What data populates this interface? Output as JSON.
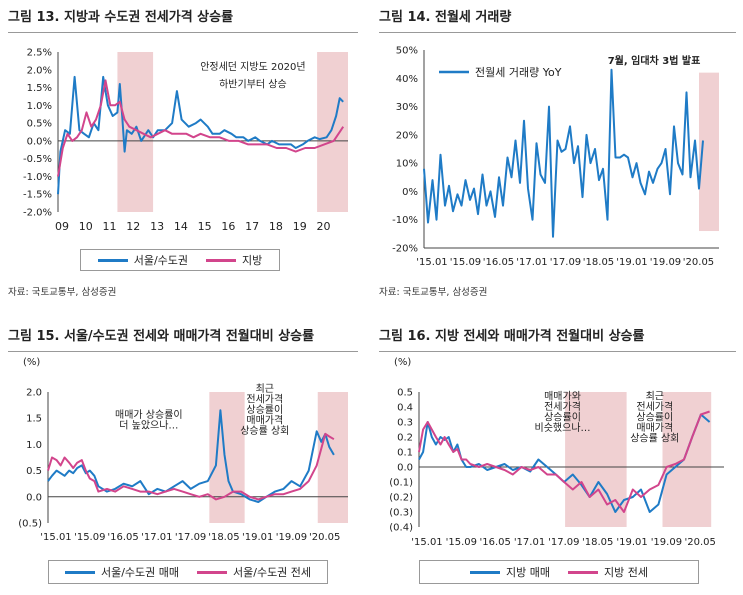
{
  "panels": [
    {
      "title": "그림 13. 지방과 수도권 전세가격 상승률",
      "source": "자료: 국토교통부, 삼성증권",
      "legend": [
        "서울/수도권",
        "지방"
      ]
    },
    {
      "title": "그림 14. 전월세 거래량",
      "source": "자료: 국토교통부, 삼성증권",
      "legend": [
        "전월세 거래량 YoY"
      ]
    },
    {
      "title": "그림 15. 서울/수도권 전세와 매매가격 전월대비 상승률",
      "source": "",
      "legend": [
        "서울/수도권 매매",
        "서울/수도권 전세"
      ]
    },
    {
      "title": "그림 16. 지방 전세와 매매가격 전월대비 상승률",
      "source": "",
      "legend": [
        "지방 매매",
        "지방 전세"
      ]
    }
  ],
  "colors": {
    "blue": "#1f7bc6",
    "pink": "#d2458c",
    "shade": "#f0d0d2"
  },
  "chart_data": [
    {
      "type": "line",
      "ylim": [
        -2.0,
        2.5
      ],
      "yticks": [
        "2.5%",
        "2.0%",
        "1.5%",
        "1.0%",
        "0.5%",
        "0.0%",
        "-0.5%",
        "-1.0%",
        "-1.5%",
        "-2.0%"
      ],
      "xlim": [
        2009.0,
        2021.2
      ],
      "xticks": [
        "09",
        "10",
        "11",
        "12",
        "13",
        "14",
        "15",
        "16",
        "17",
        "18",
        "19",
        "20"
      ],
      "shaded": [
        [
          2011.5,
          2013.0
        ],
        [
          2019.9,
          2021.2
        ]
      ],
      "annotations": [
        {
          "text": "안정세던 지방도 2020년",
          "x": 2017.2,
          "y": 2.0
        },
        {
          "text": "하반기부터 상승",
          "x": 2017.2,
          "y": 1.5
        }
      ],
      "series": [
        {
          "name": "서울/수도권",
          "x": [
            2009.0,
            2009.1,
            2009.3,
            2009.5,
            2009.7,
            2009.9,
            2010.1,
            2010.3,
            2010.5,
            2010.7,
            2010.9,
            2011.0,
            2011.1,
            2011.3,
            2011.5,
            2011.6,
            2011.7,
            2011.8,
            2011.9,
            2012.1,
            2012.3,
            2012.5,
            2012.8,
            2013.0,
            2013.2,
            2013.5,
            2013.8,
            2014.0,
            2014.2,
            2014.5,
            2014.8,
            2015.0,
            2015.3,
            2015.5,
            2015.8,
            2016.0,
            2016.3,
            2016.5,
            2016.8,
            2017.0,
            2017.3,
            2017.5,
            2017.8,
            2018.0,
            2018.3,
            2018.5,
            2018.8,
            2019.0,
            2019.3,
            2019.5,
            2019.8,
            2020.0,
            2020.3,
            2020.5,
            2020.7,
            2020.85,
            2021.0
          ],
          "values": [
            -1.5,
            -0.3,
            0.3,
            0.2,
            1.8,
            0.3,
            0.2,
            0.1,
            0.5,
            0.3,
            1.8,
            1.4,
            1.0,
            0.7,
            0.8,
            1.6,
            0.7,
            -0.3,
            0.3,
            0.2,
            0.4,
            0.0,
            0.3,
            0.1,
            0.3,
            0.3,
            0.5,
            1.4,
            0.6,
            0.4,
            0.5,
            0.6,
            0.4,
            0.2,
            0.2,
            0.3,
            0.2,
            0.1,
            0.1,
            0.0,
            0.1,
            0.0,
            -0.1,
            0.0,
            -0.1,
            -0.1,
            -0.1,
            -0.2,
            -0.1,
            0.0,
            0.1,
            0.05,
            0.1,
            0.3,
            0.7,
            1.2,
            1.1
          ]
        },
        {
          "name": "지방",
          "x": [
            2009.0,
            2009.2,
            2009.4,
            2009.6,
            2009.8,
            2010.0,
            2010.2,
            2010.4,
            2010.6,
            2010.8,
            2011.0,
            2011.2,
            2011.4,
            2011.6,
            2011.8,
            2012.0,
            2012.3,
            2012.6,
            2012.9,
            2013.2,
            2013.5,
            2013.8,
            2014.1,
            2014.4,
            2014.7,
            2015.0,
            2015.4,
            2015.8,
            2016.2,
            2016.6,
            2017.0,
            2017.4,
            2017.8,
            2018.2,
            2018.6,
            2019.0,
            2019.4,
            2019.8,
            2020.2,
            2020.6,
            2020.9,
            2021.0
          ],
          "values": [
            -1.0,
            -0.2,
            0.2,
            0.0,
            0.1,
            0.3,
            0.8,
            0.4,
            0.6,
            1.0,
            1.7,
            1.0,
            1.0,
            1.1,
            0.6,
            0.4,
            0.3,
            0.2,
            0.1,
            0.2,
            0.3,
            0.2,
            0.2,
            0.2,
            0.1,
            0.2,
            0.1,
            0.1,
            0.0,
            0.0,
            -0.1,
            -0.1,
            -0.1,
            -0.2,
            -0.2,
            -0.3,
            -0.2,
            -0.2,
            -0.1,
            0.0,
            0.3,
            0.4
          ]
        }
      ]
    },
    {
      "type": "line",
      "ylim": [
        -20,
        50
      ],
      "yticks": [
        "50%",
        "40%",
        "30%",
        "20%",
        "10%",
        "0%",
        "-10%",
        "-20%"
      ],
      "xticks": [
        "'15.01",
        "'15.09",
        "'16.05",
        "'17.01",
        "'17.09",
        "'18.05",
        "'19.01",
        "'19.09",
        "'20.05"
      ],
      "shaded": [
        [
          2020.5,
          2020.9
        ]
      ],
      "annotations": [
        {
          "text": "7월, 임대차 3법 발표",
          "x": 2019.6,
          "y": 45
        }
      ],
      "series": [
        {
          "name": "전월세 거래량 YoY",
          "x": [
            2015.0,
            2015.08,
            2015.17,
            2015.25,
            2015.33,
            2015.42,
            2015.5,
            2015.58,
            2015.67,
            2015.75,
            2015.83,
            2015.92,
            2016.0,
            2016.08,
            2016.17,
            2016.25,
            2016.33,
            2016.42,
            2016.5,
            2016.58,
            2016.67,
            2016.75,
            2016.83,
            2016.92,
            2017.0,
            2017.08,
            2017.17,
            2017.25,
            2017.33,
            2017.42,
            2017.5,
            2017.58,
            2017.67,
            2017.75,
            2017.83,
            2017.92,
            2018.0,
            2018.08,
            2018.17,
            2018.25,
            2018.33,
            2018.42,
            2018.5,
            2018.58,
            2018.67,
            2018.75,
            2018.83,
            2018.92,
            2019.0,
            2019.08,
            2019.17,
            2019.25,
            2019.33,
            2019.42,
            2019.5,
            2019.58,
            2019.67,
            2019.75,
            2019.83,
            2019.92,
            2020.0,
            2020.08,
            2020.17,
            2020.25,
            2020.33,
            2020.42,
            2020.5,
            2020.58
          ],
          "values": [
            8,
            -11,
            4,
            -10,
            13,
            -5,
            2,
            -7,
            -1,
            -5,
            4,
            -3,
            1,
            -8,
            6,
            -5,
            0,
            -9,
            5,
            -5,
            12,
            5,
            18,
            3,
            25,
            1,
            -10,
            17,
            6,
            3,
            30,
            -16,
            18,
            14,
            15,
            23,
            10,
            16,
            -2,
            20,
            10,
            15,
            4,
            8,
            -10,
            43,
            12,
            12,
            13,
            12,
            5,
            10,
            3,
            -1,
            7,
            3,
            8,
            10,
            15,
            -1,
            23,
            10,
            6,
            35,
            5,
            18,
            1,
            18
          ]
        }
      ]
    },
    {
      "type": "line",
      "ylim": [
        -0.5,
        2.0
      ],
      "yticks": [
        "2.0",
        "1.5",
        "1.0",
        "0.5",
        "0.0",
        "(0.5)"
      ],
      "xticks": [
        "'15.01",
        "'15.09",
        "'16.05",
        "'17.01",
        "'17.09",
        "'18.05",
        "'19.01",
        "'19.09",
        "'20.05"
      ],
      "shaded": [
        [
          2018.2,
          2018.9
        ],
        [
          2020.35,
          2020.95
        ]
      ],
      "annotations": [
        {
          "text": "매매가 상승률이",
          "x": 2017.0,
          "y": 1.5
        },
        {
          "text": "더 높았으나…",
          "x": 2017.0,
          "y": 1.3
        },
        {
          "text": "최근",
          "x": 2019.3,
          "y": 2.0
        },
        {
          "text": "전세가격",
          "x": 2019.3,
          "y": 1.8
        },
        {
          "text": "상승률이",
          "x": 2019.3,
          "y": 1.6
        },
        {
          "text": "매매가격",
          "x": 2019.3,
          "y": 1.4
        },
        {
          "text": "상승률 상회",
          "x": 2019.3,
          "y": 1.2
        }
      ],
      "series": [
        {
          "name": "서울/수도권 매매",
          "x": [
            2015.0,
            2015.08,
            2015.17,
            2015.25,
            2015.33,
            2015.42,
            2015.5,
            2015.58,
            2015.67,
            2015.75,
            2015.83,
            2015.92,
            2016.0,
            2016.17,
            2016.33,
            2016.5,
            2016.67,
            2016.83,
            2017.0,
            2017.17,
            2017.33,
            2017.5,
            2017.67,
            2017.83,
            2018.0,
            2018.17,
            2018.33,
            2018.42,
            2018.5,
            2018.58,
            2018.67,
            2018.83,
            2019.0,
            2019.17,
            2019.33,
            2019.5,
            2019.67,
            2019.83,
            2020.0,
            2020.17,
            2020.33,
            2020.42,
            2020.5,
            2020.58,
            2020.67
          ],
          "values": [
            0.3,
            0.4,
            0.5,
            0.45,
            0.4,
            0.5,
            0.45,
            0.55,
            0.6,
            0.45,
            0.5,
            0.4,
            0.2,
            0.1,
            0.15,
            0.25,
            0.2,
            0.3,
            0.05,
            0.15,
            0.1,
            0.2,
            0.3,
            0.15,
            0.25,
            0.3,
            0.6,
            1.65,
            0.8,
            0.3,
            0.1,
            0.05,
            -0.05,
            -0.1,
            0.0,
            0.1,
            0.15,
            0.3,
            0.2,
            0.5,
            1.25,
            1.05,
            1.2,
            0.95,
            0.8
          ]
        },
        {
          "name": "서울/수도권 전세",
          "x": [
            2015.0,
            2015.08,
            2015.17,
            2015.25,
            2015.33,
            2015.42,
            2015.5,
            2015.58,
            2015.67,
            2015.75,
            2015.83,
            2015.92,
            2016.0,
            2016.17,
            2016.33,
            2016.5,
            2016.67,
            2016.83,
            2017.0,
            2017.17,
            2017.33,
            2017.5,
            2017.67,
            2017.83,
            2018.0,
            2018.17,
            2018.33,
            2018.5,
            2018.67,
            2018.83,
            2019.0,
            2019.17,
            2019.33,
            2019.5,
            2019.67,
            2019.83,
            2020.0,
            2020.17,
            2020.33,
            2020.5,
            2020.58,
            2020.67
          ],
          "values": [
            0.5,
            0.75,
            0.7,
            0.6,
            0.75,
            0.65,
            0.55,
            0.65,
            0.7,
            0.5,
            0.35,
            0.3,
            0.1,
            0.15,
            0.1,
            0.2,
            0.15,
            0.1,
            0.1,
            0.05,
            0.1,
            0.15,
            0.1,
            0.05,
            0.0,
            0.05,
            -0.05,
            0.0,
            0.1,
            0.1,
            0.0,
            -0.05,
            0.0,
            0.05,
            0.05,
            0.1,
            0.15,
            0.3,
            0.6,
            1.2,
            1.15,
            1.1
          ]
        }
      ]
    },
    {
      "type": "line",
      "ylim": [
        -0.4,
        0.5
      ],
      "yticks": [
        "0.5",
        "0.4",
        "0.3",
        "0.2",
        "0.1",
        "0.0",
        "(0.1)",
        "(0.2)",
        "(0.3)",
        "(0.4)"
      ],
      "xticks": [
        "'15.01",
        "'15.09",
        "'16.05",
        "'17.01",
        "'17.09",
        "'18.05",
        "'19.01",
        "'19.09",
        "'20.05"
      ],
      "shaded": [
        [
          2017.85,
          2019.05
        ],
        [
          2019.75,
          2020.7
        ]
      ],
      "annotations": [
        {
          "text": "매매가와",
          "x": 2017.8,
          "y": 0.45
        },
        {
          "text": "전세가격",
          "x": 2017.8,
          "y": 0.38
        },
        {
          "text": "상승률이",
          "x": 2017.8,
          "y": 0.31
        },
        {
          "text": "비슷했으나…",
          "x": 2017.8,
          "y": 0.24
        },
        {
          "text": "최근",
          "x": 2019.6,
          "y": 0.45
        },
        {
          "text": "전세가격",
          "x": 2019.6,
          "y": 0.38
        },
        {
          "text": "상승률이",
          "x": 2019.6,
          "y": 0.31
        },
        {
          "text": "매매가격",
          "x": 2019.6,
          "y": 0.24
        },
        {
          "text": "상승률 상회",
          "x": 2019.6,
          "y": 0.17
        }
      ],
      "series": [
        {
          "name": "지방 매매",
          "x": [
            2015.0,
            2015.08,
            2015.17,
            2015.25,
            2015.33,
            2015.42,
            2015.5,
            2015.58,
            2015.67,
            2015.75,
            2015.83,
            2015.92,
            2016.0,
            2016.17,
            2016.33,
            2016.5,
            2016.67,
            2016.83,
            2017.0,
            2017.17,
            2017.33,
            2017.5,
            2017.67,
            2017.83,
            2018.0,
            2018.17,
            2018.33,
            2018.5,
            2018.67,
            2018.83,
            2019.0,
            2019.17,
            2019.33,
            2019.5,
            2019.67,
            2019.83,
            2020.0,
            2020.17,
            2020.33,
            2020.5,
            2020.67
          ],
          "values": [
            0.05,
            0.1,
            0.3,
            0.2,
            0.15,
            0.2,
            0.18,
            0.2,
            0.1,
            0.15,
            0.05,
            0.0,
            0.0,
            0.02,
            -0.02,
            0.0,
            0.02,
            -0.02,
            0.0,
            -0.03,
            0.05,
            0.0,
            -0.05,
            -0.1,
            -0.05,
            -0.12,
            -0.2,
            -0.1,
            -0.18,
            -0.3,
            -0.22,
            -0.2,
            -0.15,
            -0.3,
            -0.25,
            -0.05,
            0.0,
            0.05,
            0.2,
            0.35,
            0.3
          ]
        },
        {
          "name": "지방 전세",
          "x": [
            2015.0,
            2015.08,
            2015.17,
            2015.25,
            2015.33,
            2015.42,
            2015.5,
            2015.58,
            2015.67,
            2015.75,
            2015.83,
            2015.92,
            2016.0,
            2016.17,
            2016.33,
            2016.5,
            2016.67,
            2016.83,
            2017.0,
            2017.17,
            2017.33,
            2017.5,
            2017.67,
            2017.83,
            2018.0,
            2018.17,
            2018.33,
            2018.5,
            2018.67,
            2018.83,
            2019.0,
            2019.17,
            2019.33,
            2019.5,
            2019.67,
            2019.83,
            2020.0,
            2020.17,
            2020.33,
            2020.5,
            2020.67
          ],
          "values": [
            0.1,
            0.25,
            0.3,
            0.25,
            0.2,
            0.15,
            0.2,
            0.15,
            0.1,
            0.12,
            0.05,
            0.05,
            0.02,
            0.0,
            0.02,
            0.0,
            -0.02,
            -0.05,
            0.0,
            -0.02,
            0.0,
            -0.05,
            -0.05,
            -0.1,
            -0.15,
            -0.1,
            -0.2,
            -0.15,
            -0.25,
            -0.22,
            -0.3,
            -0.15,
            -0.2,
            -0.15,
            -0.12,
            0.0,
            0.02,
            0.05,
            0.2,
            0.35,
            0.37
          ]
        }
      ]
    }
  ]
}
